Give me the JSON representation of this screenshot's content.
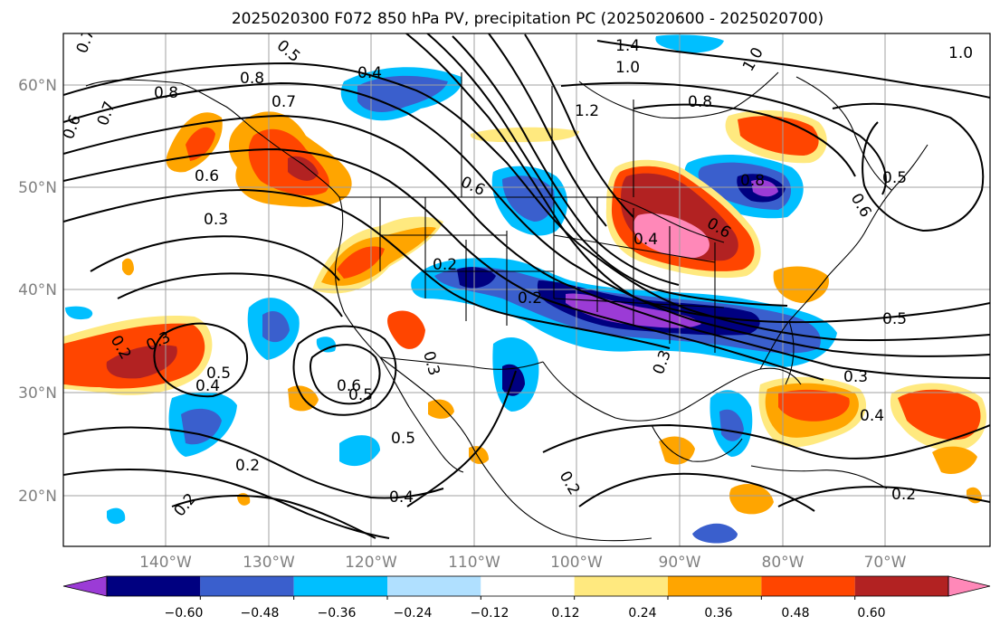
{
  "title": "2025020300 F072 850 hPa PV, precipitation PC (2025020600 - 2025020700)",
  "lat_labels": [
    "60°N",
    "50°N",
    "40°N",
    "30°N",
    "20°N"
  ],
  "lon_labels": [
    "140°W",
    "130°W",
    "120°W",
    "110°W",
    "100°W",
    "90°W",
    "80°W",
    "70°W"
  ],
  "colorbar": {
    "ticks": [
      "−0.60",
      "−0.48",
      "−0.36",
      "−0.24",
      "−0.12",
      "0.12",
      "0.24",
      "0.36",
      "0.48",
      "0.60"
    ],
    "colors": [
      "#9b3bd6",
      "#000080",
      "#3a5fcd",
      "#00bfff",
      "#b0e0ff",
      "#ffffff",
      "#ffe97f",
      "#ffa500",
      "#ff4500",
      "#b22222",
      "#ff88b8"
    ]
  },
  "contour_labels": [
    "0.7",
    "0.5",
    "0.8",
    "0.8",
    "0.7",
    "0.6",
    "0.7",
    "0.4",
    "1.4",
    "1.0",
    "1.0",
    "1.0",
    "0.8",
    "1.2",
    "0.5",
    "0.6",
    "0.6",
    "0.3",
    "0.6",
    "0.8",
    "0.6",
    "0.4",
    "0.2",
    "0.2",
    "0.5",
    "0.2",
    "0.3",
    "0.5",
    "0.4",
    "0.6",
    "0.5",
    "0.3",
    "0.3",
    "0.5",
    "0.2",
    "0.4",
    "0.2",
    "0.2",
    "0.3",
    "0.4",
    "0.2"
  ],
  "colors": {
    "grid": "#a0a0a0",
    "axis_label": "#808080",
    "contour": "#000000"
  }
}
